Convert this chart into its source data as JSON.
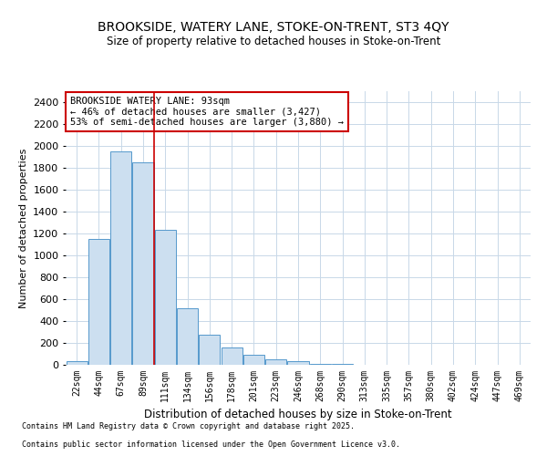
{
  "title1": "BROOKSIDE, WATERY LANE, STOKE-ON-TRENT, ST3 4QY",
  "title2": "Size of property relative to detached houses in Stoke-on-Trent",
  "xlabel": "Distribution of detached houses by size in Stoke-on-Trent",
  "ylabel": "Number of detached properties",
  "footnote1": "Contains HM Land Registry data © Crown copyright and database right 2025.",
  "footnote2": "Contains public sector information licensed under the Open Government Licence v3.0.",
  "annotation_line1": "BROOKSIDE WATERY LANE: 93sqm",
  "annotation_line2": "← 46% of detached houses are smaller (3,427)",
  "annotation_line3": "53% of semi-detached houses are larger (3,880) →",
  "categories": [
    "22sqm",
    "44sqm",
    "67sqm",
    "89sqm",
    "111sqm",
    "134sqm",
    "156sqm",
    "178sqm",
    "201sqm",
    "223sqm",
    "246sqm",
    "268sqm",
    "290sqm",
    "313sqm",
    "335sqm",
    "357sqm",
    "380sqm",
    "402sqm",
    "424sqm",
    "447sqm",
    "469sqm"
  ],
  "values": [
    30,
    1150,
    1950,
    1850,
    1230,
    520,
    275,
    155,
    90,
    50,
    35,
    10,
    5,
    3,
    2,
    1,
    1,
    0,
    0,
    0,
    0
  ],
  "bar_facecolor": "#ccdff0",
  "bar_edgecolor": "#5599cc",
  "marker_color": "#cc0000",
  "annotation_box_edgecolor": "#cc0000",
  "background_color": "#ffffff",
  "grid_color": "#c8d8e8",
  "ylim": [
    0,
    2500
  ],
  "yticks": [
    0,
    200,
    400,
    600,
    800,
    1000,
    1200,
    1400,
    1600,
    1800,
    2000,
    2200,
    2400
  ],
  "marker_index": 3
}
